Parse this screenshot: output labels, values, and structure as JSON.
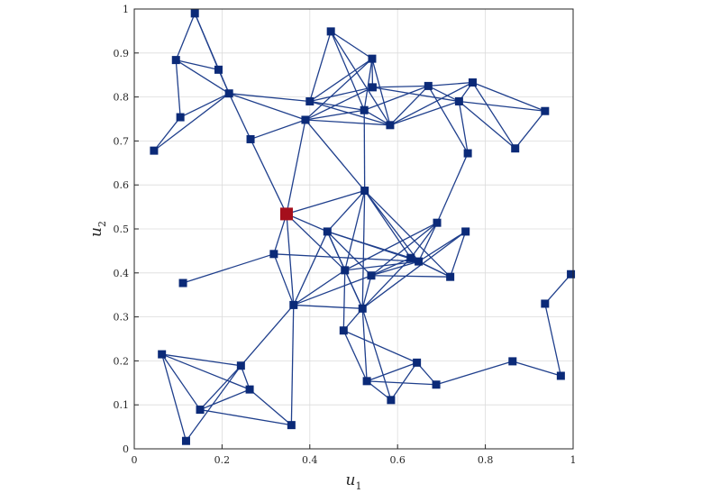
{
  "chart_data": {
    "type": "scatter",
    "subtype": "network-graph",
    "title": "",
    "xlabel": "u",
    "xlabel_subscript": "1",
    "ylabel": "u",
    "ylabel_subscript": "2",
    "xlim": [
      0,
      1
    ],
    "ylim": [
      0,
      1
    ],
    "xticks": [
      "0",
      "0.2",
      "0.4",
      "0.6",
      "0.8",
      "1"
    ],
    "xtick_values": [
      0,
      0.2,
      0.4,
      0.6,
      0.8,
      1
    ],
    "yticks": [
      "0",
      "0.1",
      "0.2",
      "0.3",
      "0.4",
      "0.5",
      "0.6",
      "0.7",
      "0.8",
      "0.9",
      "1"
    ],
    "ytick_values": [
      0,
      0.1,
      0.2,
      0.3,
      0.4,
      0.5,
      0.6,
      0.7,
      0.8,
      0.9,
      1
    ],
    "grid": true,
    "colors": {
      "node": "#0b2a78",
      "edge": "#1f3f8c",
      "highlight": "#a50f1c",
      "grid": "#dcdcdc",
      "axis": "#262626"
    },
    "nodes": [
      {
        "x": 0.138,
        "y": 0.99
      },
      {
        "x": 0.095,
        "y": 0.884
      },
      {
        "x": 0.192,
        "y": 0.862
      },
      {
        "x": 0.216,
        "y": 0.808
      },
      {
        "x": 0.105,
        "y": 0.754
      },
      {
        "x": 0.045,
        "y": 0.678
      },
      {
        "x": 0.265,
        "y": 0.704
      },
      {
        "x": 0.448,
        "y": 0.949
      },
      {
        "x": 0.542,
        "y": 0.887
      },
      {
        "x": 0.543,
        "y": 0.822
      },
      {
        "x": 0.4,
        "y": 0.79
      },
      {
        "x": 0.524,
        "y": 0.77
      },
      {
        "x": 0.39,
        "y": 0.748
      },
      {
        "x": 0.583,
        "y": 0.736
      },
      {
        "x": 0.67,
        "y": 0.825
      },
      {
        "x": 0.771,
        "y": 0.833
      },
      {
        "x": 0.74,
        "y": 0.79
      },
      {
        "x": 0.936,
        "y": 0.768
      },
      {
        "x": 0.868,
        "y": 0.683
      },
      {
        "x": 0.76,
        "y": 0.672
      },
      {
        "x": 0.525,
        "y": 0.587
      },
      {
        "x": 0.347,
        "y": 0.534,
        "highlight": true
      },
      {
        "x": 0.44,
        "y": 0.494
      },
      {
        "x": 0.69,
        "y": 0.514
      },
      {
        "x": 0.755,
        "y": 0.494
      },
      {
        "x": 0.318,
        "y": 0.443
      },
      {
        "x": 0.63,
        "y": 0.434
      },
      {
        "x": 0.648,
        "y": 0.426
      },
      {
        "x": 0.48,
        "y": 0.406
      },
      {
        "x": 0.54,
        "y": 0.394
      },
      {
        "x": 0.72,
        "y": 0.391
      },
      {
        "x": 0.111,
        "y": 0.377
      },
      {
        "x": 0.363,
        "y": 0.327
      },
      {
        "x": 0.52,
        "y": 0.319
      },
      {
        "x": 0.477,
        "y": 0.269
      },
      {
        "x": 0.063,
        "y": 0.215
      },
      {
        "x": 0.243,
        "y": 0.189
      },
      {
        "x": 0.644,
        "y": 0.196
      },
      {
        "x": 0.53,
        "y": 0.154
      },
      {
        "x": 0.688,
        "y": 0.146
      },
      {
        "x": 0.263,
        "y": 0.135
      },
      {
        "x": 0.585,
        "y": 0.111
      },
      {
        "x": 0.15,
        "y": 0.089
      },
      {
        "x": 0.358,
        "y": 0.054
      },
      {
        "x": 0.118,
        "y": 0.018
      },
      {
        "x": 0.862,
        "y": 0.199
      },
      {
        "x": 0.936,
        "y": 0.33
      },
      {
        "x": 0.972,
        "y": 0.166
      },
      {
        "x": 0.995,
        "y": 0.397
      }
    ],
    "edges": [
      [
        0,
        1
      ],
      [
        0,
        2
      ],
      [
        0,
        3
      ],
      [
        1,
        2
      ],
      [
        1,
        3
      ],
      [
        1,
        4
      ],
      [
        2,
        3
      ],
      [
        3,
        4
      ],
      [
        3,
        5
      ],
      [
        3,
        6
      ],
      [
        4,
        5
      ],
      [
        3,
        10
      ],
      [
        3,
        12
      ],
      [
        6,
        12
      ],
      [
        6,
        21
      ],
      [
        7,
        10
      ],
      [
        7,
        11
      ],
      [
        7,
        13
      ],
      [
        7,
        8
      ],
      [
        8,
        9
      ],
      [
        8,
        10
      ],
      [
        8,
        11
      ],
      [
        8,
        12
      ],
      [
        8,
        13
      ],
      [
        9,
        10
      ],
      [
        9,
        12
      ],
      [
        9,
        14
      ],
      [
        9,
        16
      ],
      [
        10,
        11
      ],
      [
        10,
        13
      ],
      [
        11,
        13
      ],
      [
        11,
        14
      ],
      [
        11,
        12
      ],
      [
        11,
        20
      ],
      [
        12,
        20
      ],
      [
        12,
        21
      ],
      [
        12,
        13
      ],
      [
        13,
        14
      ],
      [
        13,
        15
      ],
      [
        13,
        16
      ],
      [
        14,
        15
      ],
      [
        14,
        16
      ],
      [
        14,
        19
      ],
      [
        15,
        16
      ],
      [
        15,
        17
      ],
      [
        15,
        18
      ],
      [
        16,
        17
      ],
      [
        16,
        18
      ],
      [
        17,
        18
      ],
      [
        19,
        23
      ],
      [
        19,
        16
      ],
      [
        20,
        21
      ],
      [
        20,
        22
      ],
      [
        20,
        26
      ],
      [
        20,
        27
      ],
      [
        20,
        28
      ],
      [
        20,
        30
      ],
      [
        20,
        33
      ],
      [
        21,
        22
      ],
      [
        21,
        25
      ],
      [
        21,
        32
      ],
      [
        21,
        28
      ],
      [
        22,
        26
      ],
      [
        22,
        27
      ],
      [
        22,
        28
      ],
      [
        22,
        29
      ],
      [
        22,
        32
      ],
      [
        22,
        33
      ],
      [
        23,
        26
      ],
      [
        23,
        28
      ],
      [
        23,
        29
      ],
      [
        23,
        27
      ],
      [
        24,
        27
      ],
      [
        24,
        30
      ],
      [
        24,
        33
      ],
      [
        25,
        27
      ],
      [
        25,
        31
      ],
      [
        25,
        32
      ],
      [
        26,
        29
      ],
      [
        26,
        30
      ],
      [
        26,
        33
      ],
      [
        27,
        28
      ],
      [
        27,
        29
      ],
      [
        27,
        30
      ],
      [
        28,
        32
      ],
      [
        28,
        33
      ],
      [
        28,
        34
      ],
      [
        29,
        33
      ],
      [
        29,
        32
      ],
      [
        29,
        30
      ],
      [
        32,
        33
      ],
      [
        32,
        36
      ],
      [
        32,
        43
      ],
      [
        33,
        34
      ],
      [
        33,
        38
      ],
      [
        33,
        41
      ],
      [
        34,
        37
      ],
      [
        34,
        38
      ],
      [
        35,
        36
      ],
      [
        35,
        40
      ],
      [
        35,
        42
      ],
      [
        35,
        44
      ],
      [
        36,
        40
      ],
      [
        36,
        42
      ],
      [
        36,
        44
      ],
      [
        37,
        38
      ],
      [
        37,
        39
      ],
      [
        38,
        39
      ],
      [
        38,
        41
      ],
      [
        37,
        41
      ],
      [
        40,
        42
      ],
      [
        40,
        43
      ],
      [
        42,
        43
      ],
      [
        45,
        39
      ],
      [
        45,
        47
      ],
      [
        46,
        47
      ],
      [
        46,
        48
      ]
    ]
  }
}
